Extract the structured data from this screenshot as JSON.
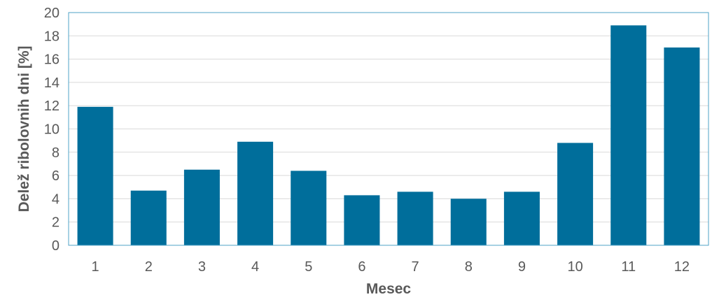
{
  "chart_data": {
    "type": "bar",
    "categories": [
      "1",
      "2",
      "3",
      "4",
      "5",
      "6",
      "7",
      "8",
      "9",
      "10",
      "11",
      "12"
    ],
    "values": [
      11.9,
      4.7,
      6.5,
      8.9,
      6.4,
      4.3,
      4.6,
      4.0,
      4.6,
      8.8,
      18.9,
      17.0
    ],
    "xlabel": "Mesec",
    "ylabel": "Delež ribolovnih dni [%]",
    "ylim": [
      0,
      20
    ],
    "yticks": [
      0,
      2,
      4,
      6,
      8,
      10,
      12,
      14,
      16,
      18,
      20
    ],
    "grid": true,
    "colors": {
      "bar": "#006E9B",
      "frame": "#4FA3C7",
      "grid": "#D9D9D9",
      "text": "#595959"
    }
  }
}
